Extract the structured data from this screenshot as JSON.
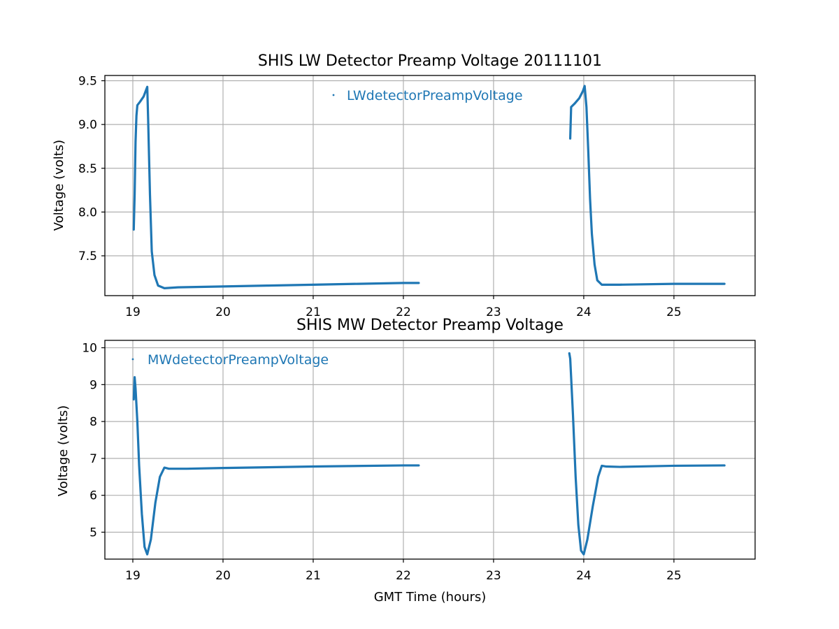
{
  "chart_data": [
    {
      "type": "line",
      "title": "SHIS LW Detector Preamp Voltage 20111101",
      "xlabel": "",
      "ylabel": "Voltage (volts)",
      "xlim": [
        18.69,
        25.9
      ],
      "ylim": [
        7.045,
        9.56
      ],
      "xticks": [
        19,
        20,
        21,
        22,
        23,
        24,
        25
      ],
      "yticks": [
        7.5,
        8.0,
        8.5,
        9.0,
        9.5
      ],
      "ytick_labels": [
        "7.5",
        "8.0",
        "8.5",
        "9.0",
        "9.5"
      ],
      "grid": true,
      "legend_position": "upper center",
      "series": [
        {
          "name": "LWdetectorPreampVoltage",
          "color": "#1f77b4",
          "segments": [
            [
              [
                19.01,
                7.8
              ],
              [
                19.02,
                8.2
              ],
              [
                19.03,
                8.8
              ],
              [
                19.04,
                9.1
              ],
              [
                19.05,
                9.22
              ],
              [
                19.08,
                9.26
              ],
              [
                19.12,
                9.32
              ],
              [
                19.16,
                9.43
              ],
              [
                19.17,
                9.05
              ],
              [
                19.19,
                8.2
              ],
              [
                19.21,
                7.55
              ],
              [
                19.24,
                7.28
              ],
              [
                19.28,
                7.16
              ],
              [
                19.35,
                7.13
              ],
              [
                19.5,
                7.14
              ],
              [
                20.0,
                7.15
              ],
              [
                20.5,
                7.16
              ],
              [
                21.0,
                7.17
              ],
              [
                21.5,
                7.18
              ],
              [
                22.0,
                7.19
              ],
              [
                22.17,
                7.19
              ]
            ],
            [
              [
                23.85,
                8.84
              ],
              [
                23.86,
                9.2
              ],
              [
                23.9,
                9.24
              ],
              [
                23.95,
                9.3
              ],
              [
                23.99,
                9.38
              ],
              [
                24.01,
                9.44
              ],
              [
                24.03,
                9.2
              ],
              [
                24.05,
                8.7
              ],
              [
                24.07,
                8.15
              ],
              [
                24.09,
                7.75
              ],
              [
                24.12,
                7.4
              ],
              [
                24.15,
                7.22
              ],
              [
                24.2,
                7.17
              ],
              [
                24.4,
                7.17
              ],
              [
                25.0,
                7.18
              ],
              [
                25.56,
                7.18
              ]
            ]
          ]
        }
      ]
    },
    {
      "type": "line",
      "title": "SHIS MW Detector Preamp Voltage",
      "xlabel": "GMT Time (hours)",
      "ylabel": "Voltage (volts)",
      "xlim": [
        18.69,
        25.9
      ],
      "ylim": [
        4.27,
        10.2
      ],
      "xticks": [
        19,
        20,
        21,
        22,
        23,
        24,
        25
      ],
      "yticks": [
        5,
        6,
        7,
        8,
        9,
        10
      ],
      "ytick_labels": [
        "5",
        "6",
        "7",
        "8",
        "9",
        "10"
      ],
      "grid": true,
      "legend_position": "upper left",
      "series": [
        {
          "name": "MWdetectorPreampVoltage",
          "color": "#1f77b4",
          "segments": [
            [
              [
                19.01,
                8.6
              ],
              [
                19.02,
                9.2
              ],
              [
                19.03,
                8.9
              ],
              [
                19.05,
                8.0
              ],
              [
                19.07,
                6.8
              ],
              [
                19.1,
                5.5
              ],
              [
                19.13,
                4.6
              ],
              [
                19.16,
                4.4
              ],
              [
                19.2,
                4.8
              ],
              [
                19.25,
                5.8
              ],
              [
                19.3,
                6.5
              ],
              [
                19.35,
                6.75
              ],
              [
                19.4,
                6.72
              ],
              [
                19.6,
                6.72
              ],
              [
                20.0,
                6.74
              ],
              [
                21.0,
                6.78
              ],
              [
                22.0,
                6.81
              ],
              [
                22.17,
                6.81
              ]
            ],
            [
              [
                23.84,
                9.85
              ],
              [
                23.85,
                9.7
              ],
              [
                23.88,
                8.2
              ],
              [
                23.91,
                6.5
              ],
              [
                23.94,
                5.2
              ],
              [
                23.97,
                4.5
              ],
              [
                24.0,
                4.4
              ],
              [
                24.04,
                4.8
              ],
              [
                24.1,
                5.7
              ],
              [
                24.16,
                6.5
              ],
              [
                24.2,
                6.8
              ],
              [
                24.25,
                6.78
              ],
              [
                24.4,
                6.77
              ],
              [
                25.0,
                6.8
              ],
              [
                25.56,
                6.81
              ]
            ]
          ]
        }
      ]
    }
  ]
}
